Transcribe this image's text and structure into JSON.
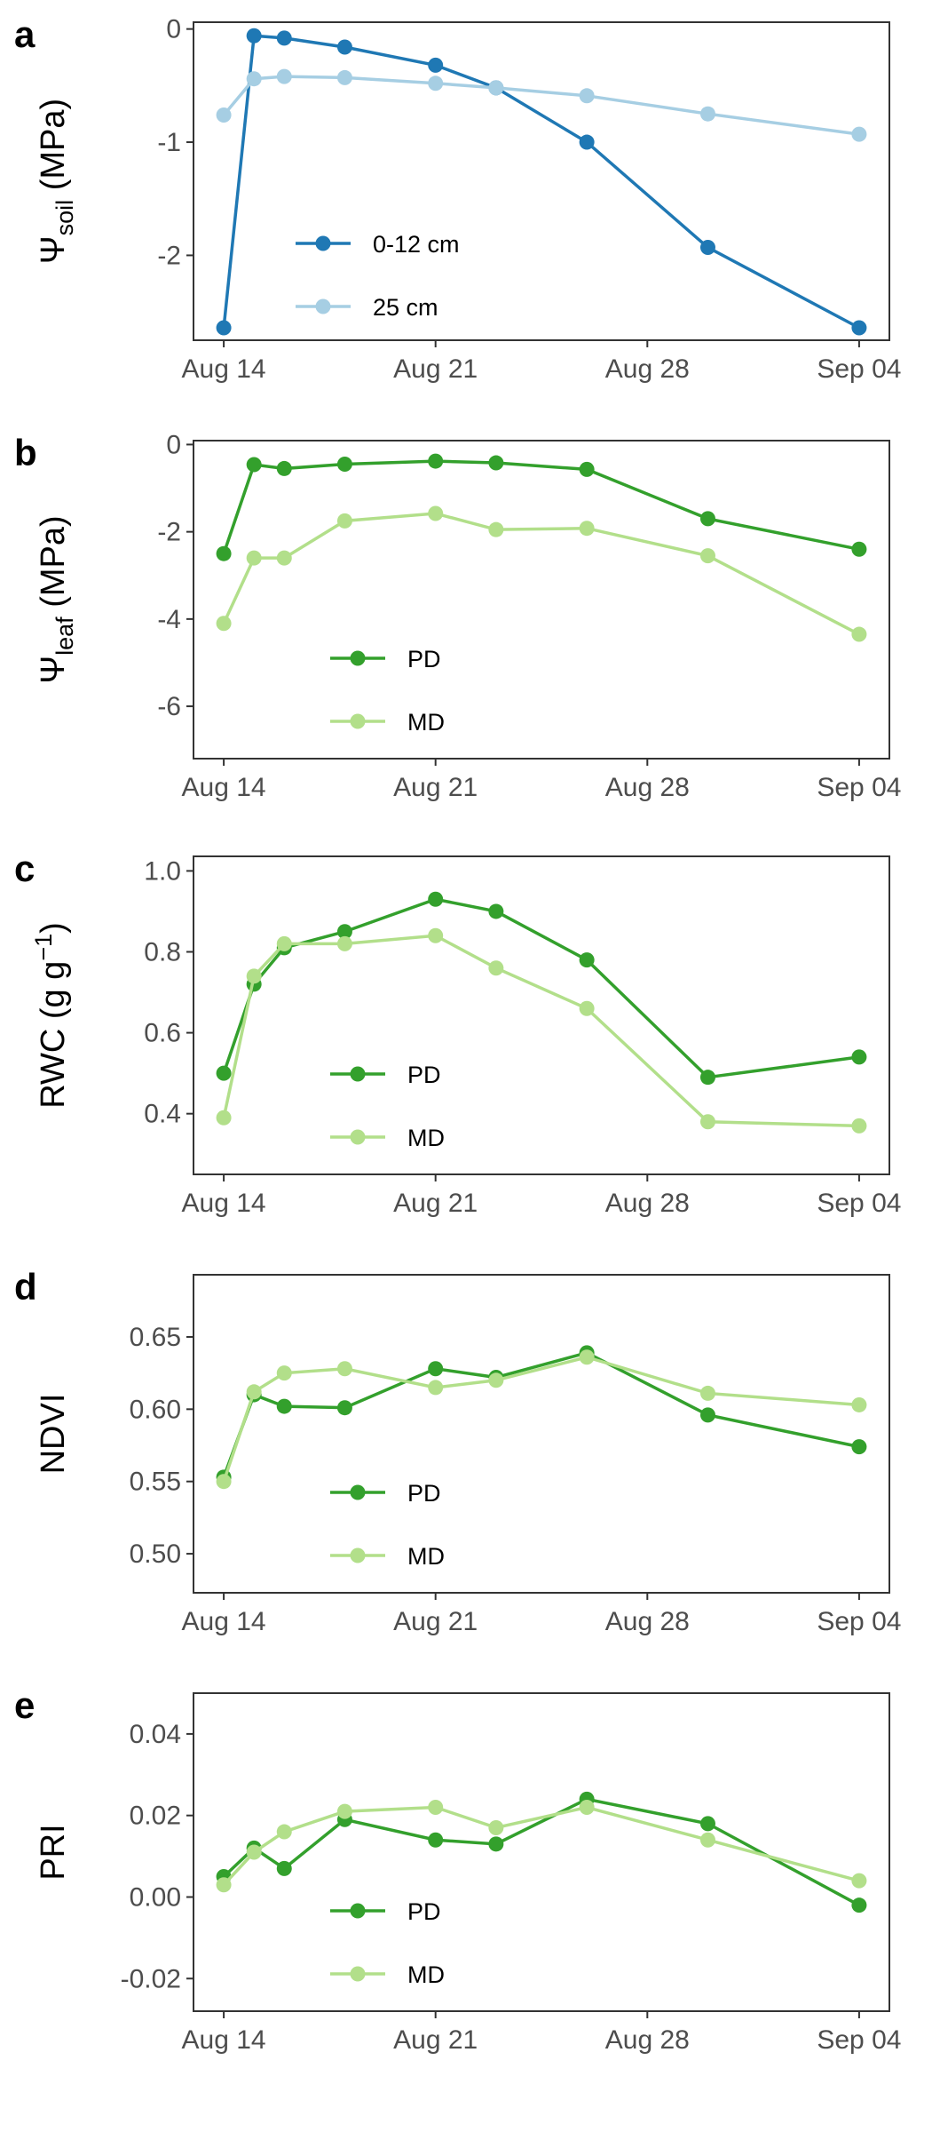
{
  "chart_data": [
    {
      "type": "line",
      "label": "a",
      "ylabel": "Ψ",
      "ylabel_sub": "soil",
      "ylabel_after": " (MPa)",
      "x": [
        "Aug 14",
        "Aug 15",
        "Aug 16",
        "Aug 18",
        "Aug 21",
        "Aug 23",
        "Aug 26",
        "Aug 30",
        "Sep 04"
      ],
      "xlim": [
        "Aug 13",
        "Sep 05"
      ],
      "xticks": [
        "Aug 14",
        "Aug 21",
        "Aug 28",
        "Sep 04"
      ],
      "ylim": [
        -2.75,
        0.06
      ],
      "yticks": [
        0,
        -1,
        -2
      ],
      "legend": "lower left",
      "series": [
        {
          "name": "0-12 cm",
          "color": "#1f78b4",
          "values": [
            -2.64,
            -0.06,
            -0.08,
            -0.16,
            -0.32,
            -0.52,
            -1.0,
            -1.93,
            -2.64
          ]
        },
        {
          "name": "25 cm",
          "color": "#a6cee3",
          "values": [
            -0.76,
            -0.44,
            -0.42,
            -0.43,
            -0.48,
            -0.52,
            -0.59,
            -0.75,
            -0.93
          ]
        }
      ]
    },
    {
      "type": "line",
      "label": "b",
      "ylabel": "Ψ",
      "ylabel_sub": "leaf",
      "ylabel_after": " (MPa)",
      "x": [
        "Aug 14",
        "Aug 15",
        "Aug 16",
        "Aug 18",
        "Aug 21",
        "Aug 23",
        "Aug 26",
        "Aug 30",
        "Sep 04"
      ],
      "xlim": [
        "Aug 13",
        "Sep 05"
      ],
      "xticks": [
        "Aug 14",
        "Aug 21",
        "Aug 28",
        "Sep 04"
      ],
      "ylim": [
        -7.2,
        0.09
      ],
      "yticks": [
        0,
        -2,
        -4,
        -6
      ],
      "legend": "lower left",
      "series": [
        {
          "name": "PD",
          "color": "#33a02c",
          "values": [
            -2.5,
            -0.46,
            -0.55,
            -0.45,
            -0.38,
            -0.42,
            -0.57,
            -1.7,
            -2.4
          ]
        },
        {
          "name": "MD",
          "color": "#b2df8a",
          "values": [
            -4.1,
            -2.6,
            -2.6,
            -1.75,
            -1.58,
            -1.95,
            -1.92,
            -2.55,
            -4.35
          ]
        }
      ]
    },
    {
      "type": "line",
      "label": "c",
      "ylabel": "RWC (g g",
      "ylabel_sup": "−1",
      "ylabel_after": ")",
      "x": [
        "Aug 14",
        "Aug 15",
        "Aug 16",
        "Aug 18",
        "Aug 21",
        "Aug 23",
        "Aug 26",
        "Aug 30",
        "Sep 04"
      ],
      "xlim": [
        "Aug 13",
        "Sep 05"
      ],
      "xticks": [
        "Aug 14",
        "Aug 21",
        "Aug 28",
        "Sep 04"
      ],
      "ylim": [
        0.25,
        1.036
      ],
      "yticks": [
        {
          "value": 1,
          "label": "1.0"
        },
        0.8,
        0.6,
        0.4
      ],
      "legend": "lower left",
      "series": [
        {
          "name": "PD",
          "color": "#33a02c",
          "values": [
            0.5,
            0.72,
            0.81,
            0.85,
            0.93,
            0.9,
            0.78,
            0.49,
            0.54
          ]
        },
        {
          "name": "MD",
          "color": "#b2df8a",
          "values": [
            0.39,
            0.74,
            0.82,
            0.82,
            0.84,
            0.76,
            0.66,
            0.38,
            0.37
          ]
        }
      ]
    },
    {
      "type": "line",
      "label": "d",
      "ylabel": "NDVI",
      "x": [
        "Aug 14",
        "Aug 15",
        "Aug 16",
        "Aug 18",
        "Aug 21",
        "Aug 23",
        "Aug 26",
        "Aug 30",
        "Sep 04"
      ],
      "xlim": [
        "Aug 13",
        "Sep 05"
      ],
      "xticks": [
        "Aug 14",
        "Aug 21",
        "Aug 28",
        "Sep 04"
      ],
      "ylim": [
        0.473,
        0.693
      ],
      "yticks": [
        0.65,
        {
          "value": 0.6,
          "label": "0.60"
        },
        0.55,
        {
          "value": 0.5,
          "label": "0.50"
        }
      ],
      "legend": "lower left",
      "series": [
        {
          "name": "PD",
          "color": "#33a02c",
          "values": [
            0.553,
            0.61,
            0.602,
            0.601,
            0.628,
            0.622,
            0.639,
            0.596,
            0.574
          ]
        },
        {
          "name": "MD",
          "color": "#b2df8a",
          "values": [
            0.55,
            0.612,
            0.625,
            0.628,
            0.615,
            0.62,
            0.636,
            0.611,
            0.603
          ]
        }
      ]
    },
    {
      "type": "line",
      "label": "e",
      "ylabel": "PRI",
      "x": [
        "Aug 14",
        "Aug 15",
        "Aug 16",
        "Aug 18",
        "Aug 21",
        "Aug 23",
        "Aug 26",
        "Aug 30",
        "Sep 04"
      ],
      "xlim": [
        "Aug 13",
        "Sep 05"
      ],
      "xticks": [
        "Aug 14",
        "Aug 21",
        "Aug 28",
        "Sep 04"
      ],
      "ylim": [
        -0.028,
        0.05
      ],
      "yticks": [
        0.04,
        0.02,
        {
          "value": 0,
          "label": "0.00"
        },
        -0.02
      ],
      "legend": "lower left",
      "series": [
        {
          "name": "PD",
          "color": "#33a02c",
          "values": [
            0.005,
            0.012,
            0.007,
            0.019,
            0.014,
            0.013,
            0.024,
            0.018,
            -0.002
          ]
        },
        {
          "name": "MD",
          "color": "#b2df8a",
          "values": [
            0.003,
            0.011,
            0.016,
            0.021,
            0.022,
            0.017,
            0.022,
            0.014,
            0.004
          ]
        }
      ]
    }
  ]
}
